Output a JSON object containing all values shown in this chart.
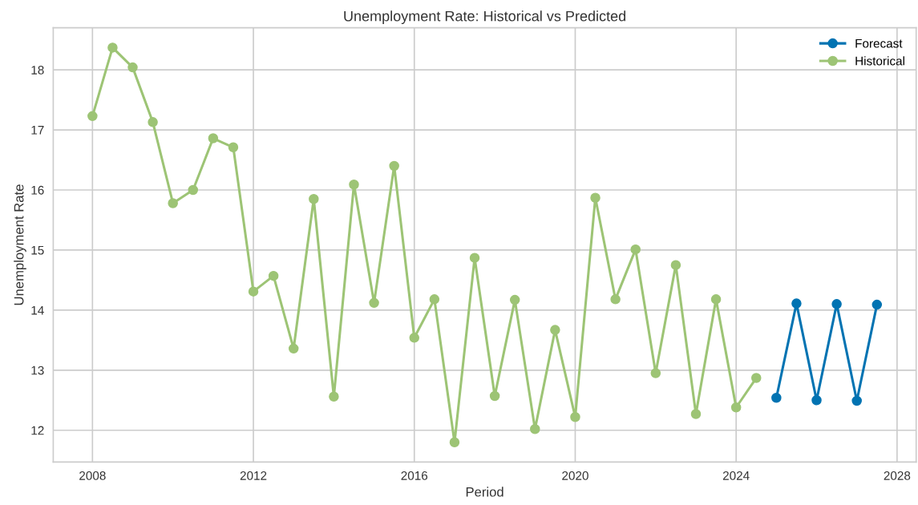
{
  "chart_data": {
    "type": "line",
    "title": "Unemployment Rate: Historical vs Predicted",
    "xlabel": "Period",
    "ylabel": "Unemployment Rate",
    "series": [
      {
        "name": "Forecast",
        "color": "#0173b2",
        "x": [
          2025.0,
          2025.5,
          2026.0,
          2026.5,
          2027.0,
          2027.5
        ],
        "values": [
          12.54,
          14.11,
          12.5,
          14.1,
          12.49,
          14.09
        ]
      },
      {
        "name": "Historical",
        "color": "#9dc475",
        "x": [
          2008.0,
          2008.5,
          2009.0,
          2009.5,
          2010.0,
          2010.5,
          2011.0,
          2011.5,
          2012.0,
          2012.5,
          2013.0,
          2013.5,
          2014.0,
          2014.5,
          2015.0,
          2015.5,
          2016.0,
          2016.5,
          2017.0,
          2017.5,
          2018.0,
          2018.5,
          2019.0,
          2019.5,
          2020.0,
          2020.5,
          2021.0,
          2021.5,
          2022.0,
          2022.5,
          2023.0,
          2023.5,
          2024.0,
          2024.5
        ],
        "values": [
          17.23,
          18.37,
          18.04,
          17.13,
          15.78,
          16.0,
          16.86,
          16.71,
          14.31,
          14.57,
          13.36,
          15.85,
          12.56,
          16.09,
          14.12,
          16.4,
          13.54,
          14.18,
          11.8,
          14.87,
          12.57,
          14.17,
          12.02,
          13.67,
          12.22,
          15.87,
          14.18,
          15.01,
          12.95,
          14.75,
          12.27,
          14.18,
          12.38,
          12.87
        ]
      }
    ],
    "xlim": [
      2007.025,
      2028.475
    ],
    "xticks": [
      2008,
      2012,
      2016,
      2020,
      2024,
      2028
    ],
    "ylim": [
      11.47,
      18.7
    ],
    "yticks": [
      12,
      13,
      14,
      15,
      16,
      17,
      18
    ],
    "grid": true,
    "legend": "top right",
    "marker": "circle",
    "line_style": "solid"
  }
}
